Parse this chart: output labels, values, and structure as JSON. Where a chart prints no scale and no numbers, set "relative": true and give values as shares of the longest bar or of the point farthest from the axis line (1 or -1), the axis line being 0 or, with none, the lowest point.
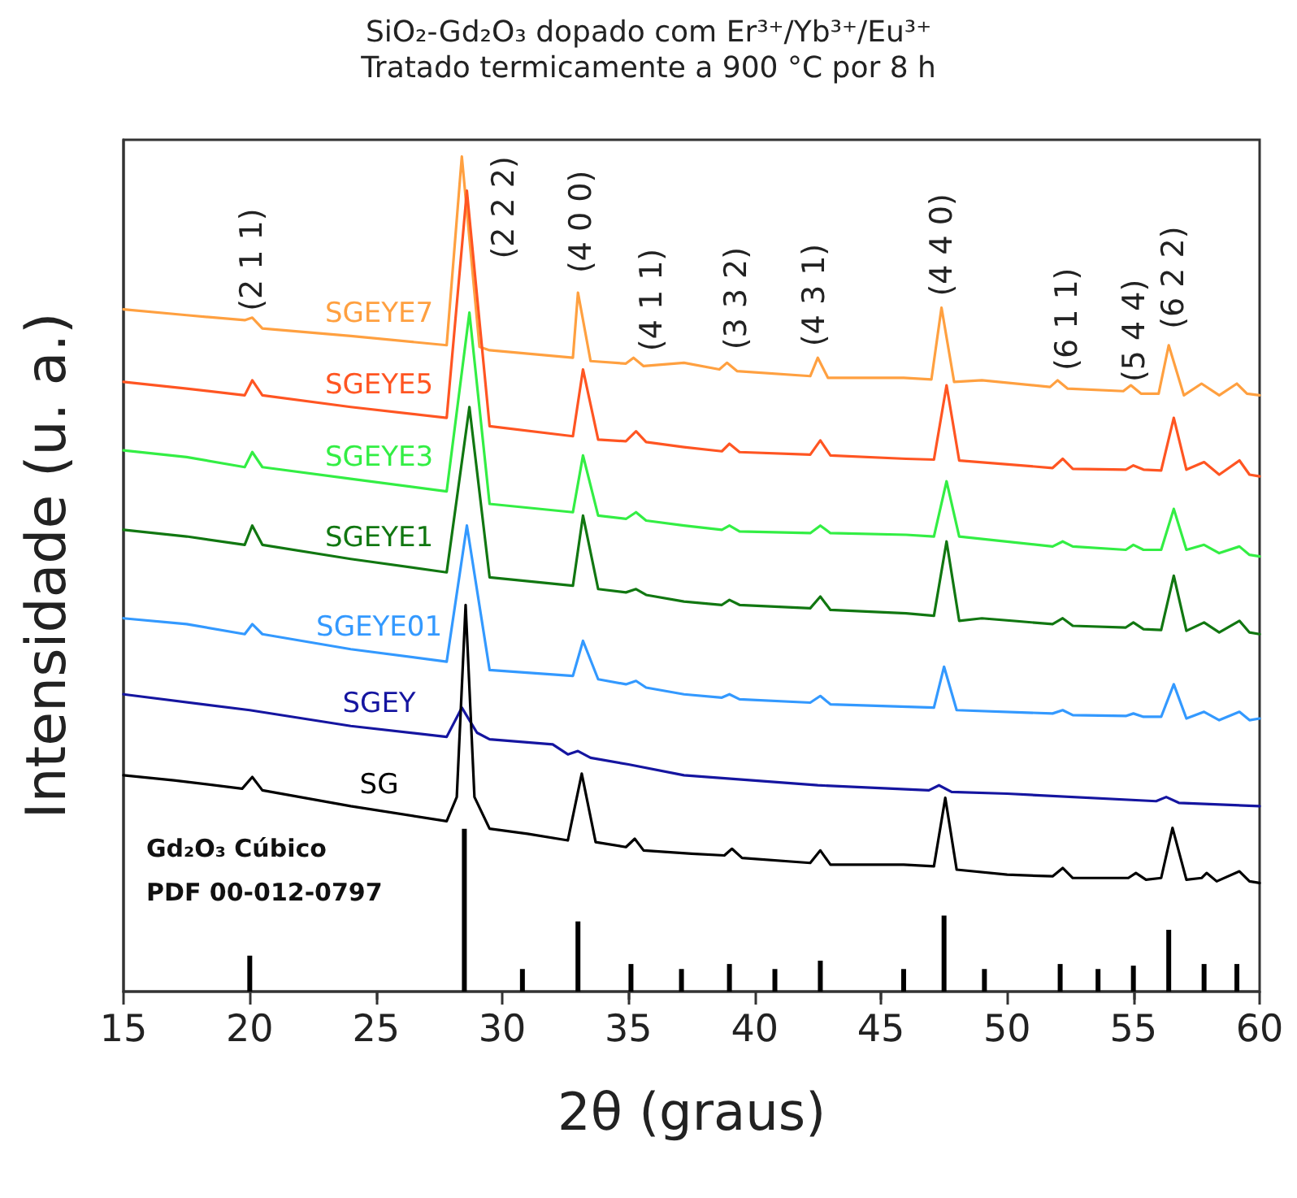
{
  "chart_data": {
    "type": "line",
    "relative": true,
    "title": "SiO₂-Gd₂O₃ dopado com Er³⁺/Yb³⁺/Eu³⁺",
    "subtitle": "Tratado termicamente a 900 °C por 8 h",
    "xlabel": "2θ (graus)",
    "ylabel": "Intensidade (u. a.)",
    "xlim": [
      15,
      60
    ],
    "xticks": [
      15,
      20,
      25,
      30,
      35,
      40,
      45,
      50,
      55,
      60
    ],
    "grid": false,
    "legend": false,
    "marker": "none",
    "line_style": "solid",
    "series": [
      {
        "name": "SGEYE7",
        "color": "#ffa040",
        "x": [
          15,
          17.5,
          19.8,
          20.1,
          20.5,
          24,
          27.8,
          28.4,
          29.1,
          29.5,
          32.8,
          33.0,
          33.5,
          34.9,
          35.2,
          35.6,
          37.2,
          38.6,
          38.9,
          39.3,
          42.2,
          42.5,
          42.9,
          45.9,
          47.0,
          47.4,
          47.9,
          49.0,
          51.7,
          52.0,
          52.4,
          54.6,
          54.9,
          55.3,
          56.0,
          56.4,
          57.0,
          57.7,
          58.4,
          59.1,
          59.5,
          60
        ],
        "values": [
          0.817,
          0.81,
          0.804,
          0.807,
          0.794,
          0.785,
          0.774,
          1,
          0.772,
          0.768,
          0.759,
          0.837,
          0.755,
          0.752,
          0.759,
          0.749,
          0.753,
          0.745,
          0.753,
          0.743,
          0.737,
          0.759,
          0.735,
          0.735,
          0.733,
          0.819,
          0.73,
          0.732,
          0.724,
          0.732,
          0.722,
          0.719,
          0.726,
          0.716,
          0.716,
          0.774,
          0.714,
          0.728,
          0.714,
          0.728,
          0.716,
          0.714
        ]
      },
      {
        "name": "SGEYE5",
        "color": "#ff5522",
        "x": [
          15,
          17.5,
          19.8,
          20.1,
          20.5,
          24,
          27.8,
          28.6,
          29.5,
          32.8,
          33.2,
          33.8,
          34.9,
          35.3,
          35.7,
          37.2,
          38.7,
          39.0,
          39.4,
          42.2,
          42.6,
          43.0,
          46.0,
          47.1,
          47.6,
          48.1,
          51.8,
          52.2,
          52.6,
          54.7,
          55.0,
          55.4,
          56.1,
          56.6,
          57.1,
          57.8,
          58.4,
          59.2,
          59.6,
          60
        ],
        "values": [
          0.73,
          0.722,
          0.714,
          0.732,
          0.714,
          0.7,
          0.687,
          0.959,
          0.677,
          0.665,
          0.745,
          0.661,
          0.659,
          0.671,
          0.658,
          0.652,
          0.647,
          0.656,
          0.646,
          0.643,
          0.66,
          0.642,
          0.638,
          0.637,
          0.726,
          0.636,
          0.627,
          0.638,
          0.626,
          0.625,
          0.63,
          0.625,
          0.624,
          0.687,
          0.625,
          0.634,
          0.619,
          0.636,
          0.619,
          0.617
        ]
      },
      {
        "name": "SGEYE3",
        "color": "#33ee44",
        "x": [
          15,
          17.5,
          19.8,
          20.1,
          20.5,
          24,
          27.8,
          28.7,
          29.5,
          32.8,
          33.2,
          33.8,
          34.9,
          35.3,
          35.7,
          37.2,
          38.7,
          39.0,
          39.4,
          42.2,
          42.6,
          43.0,
          46.0,
          47.1,
          47.6,
          48.1,
          51.8,
          52.2,
          52.6,
          54.7,
          55.0,
          55.4,
          56.1,
          56.6,
          57.1,
          57.8,
          58.4,
          59.2,
          59.6,
          60
        ],
        "values": [
          0.648,
          0.64,
          0.628,
          0.646,
          0.628,
          0.614,
          0.599,
          0.813,
          0.584,
          0.574,
          0.642,
          0.57,
          0.566,
          0.574,
          0.564,
          0.558,
          0.553,
          0.558,
          0.551,
          0.549,
          0.558,
          0.549,
          0.547,
          0.545,
          0.611,
          0.545,
          0.533,
          0.539,
          0.533,
          0.529,
          0.535,
          0.529,
          0.529,
          0.578,
          0.529,
          0.535,
          0.525,
          0.533,
          0.523,
          0.521
        ]
      },
      {
        "name": "SGEYE1",
        "color": "#117711",
        "x": [
          15,
          17.5,
          19.8,
          20.1,
          20.5,
          24,
          27.8,
          28.7,
          29.5,
          32.8,
          33.2,
          33.8,
          34.9,
          35.3,
          35.7,
          37.2,
          38.7,
          39.0,
          39.4,
          42.2,
          42.6,
          43.0,
          46.0,
          47.1,
          47.6,
          48.1,
          49.0,
          51.8,
          52.2,
          52.6,
          54.7,
          55.0,
          55.4,
          56.1,
          56.6,
          57.1,
          57.8,
          58.4,
          59.2,
          59.6,
          60
        ],
        "values": [
          0.553,
          0.545,
          0.535,
          0.558,
          0.535,
          0.518,
          0.502,
          0.7,
          0.496,
          0.486,
          0.57,
          0.482,
          0.478,
          0.482,
          0.475,
          0.467,
          0.463,
          0.469,
          0.463,
          0.459,
          0.473,
          0.457,
          0.453,
          0.45,
          0.539,
          0.444,
          0.447,
          0.44,
          0.447,
          0.438,
          0.436,
          0.442,
          0.434,
          0.433,
          0.498,
          0.432,
          0.442,
          0.43,
          0.444,
          0.43,
          0.428
        ]
      },
      {
        "name": "SGEYE01",
        "color": "#3399ff",
        "x": [
          15,
          17.5,
          19.8,
          20.1,
          20.5,
          24,
          27.8,
          28.6,
          29.5,
          32.8,
          33.2,
          33.8,
          34.9,
          35.3,
          35.7,
          37.2,
          38.7,
          39.0,
          39.4,
          42.2,
          42.6,
          43.0,
          47.1,
          47.5,
          48.0,
          51.8,
          52.2,
          52.6,
          54.7,
          55.0,
          55.4,
          56.1,
          56.6,
          57.1,
          57.8,
          58.4,
          59.2,
          59.6,
          60
        ],
        "values": [
          0.447,
          0.44,
          0.428,
          0.44,
          0.428,
          0.41,
          0.395,
          0.558,
          0.385,
          0.378,
          0.42,
          0.374,
          0.368,
          0.372,
          0.364,
          0.356,
          0.352,
          0.356,
          0.35,
          0.346,
          0.354,
          0.344,
          0.34,
          0.389,
          0.337,
          0.333,
          0.337,
          0.331,
          0.33,
          0.333,
          0.329,
          0.329,
          0.368,
          0.327,
          0.335,
          0.325,
          0.335,
          0.325,
          0.327
        ]
      },
      {
        "name": "SGEY",
        "color": "#1515a0",
        "x": [
          15,
          20,
          24,
          27.8,
          28.4,
          29.0,
          29.5,
          32.0,
          32.6,
          33.0,
          33.5,
          35.0,
          37.2,
          42.5,
          46.9,
          47.3,
          47.8,
          50,
          55.9,
          56.3,
          56.8,
          60
        ],
        "values": [
          0.356,
          0.337,
          0.318,
          0.305,
          0.34,
          0.31,
          0.302,
          0.296,
          0.284,
          0.288,
          0.28,
          0.272,
          0.259,
          0.247,
          0.241,
          0.247,
          0.239,
          0.237,
          0.228,
          0.233,
          0.226,
          0.222
        ]
      },
      {
        "name": "SG",
        "color": "#000000",
        "x": [
          15,
          17,
          19.7,
          20.1,
          20.5,
          24,
          27.8,
          28.2,
          28.55,
          28.9,
          29.5,
          31,
          32.6,
          33.15,
          33.7,
          34.9,
          35.25,
          35.6,
          37.5,
          38.8,
          39.1,
          39.5,
          42.2,
          42.6,
          43,
          45.9,
          47.1,
          47.55,
          48.0,
          50,
          51.8,
          52.2,
          52.6,
          54.8,
          55.1,
          55.5,
          56.1,
          56.55,
          57.1,
          57.7,
          57.9,
          58.3,
          59.2,
          59.6,
          60
        ],
        "values": [
          0.259,
          0.253,
          0.243,
          0.257,
          0.241,
          0.222,
          0.204,
          0.233,
          0.463,
          0.233,
          0.195,
          0.189,
          0.181,
          0.261,
          0.179,
          0.173,
          0.183,
          0.169,
          0.165,
          0.163,
          0.171,
          0.16,
          0.154,
          0.169,
          0.152,
          0.152,
          0.15,
          0.232,
          0.146,
          0.14,
          0.138,
          0.148,
          0.136,
          0.136,
          0.142,
          0.134,
          0.136,
          0.196,
          0.134,
          0.136,
          0.142,
          0.132,
          0.144,
          0.132,
          0.13
        ]
      },
      {
        "type": "bar",
        "color": "#000000",
        "x": [
          20.0,
          28.5,
          30.8,
          33.0,
          35.1,
          37.1,
          39.0,
          40.8,
          42.6,
          45.9,
          47.5,
          49.1,
          52.1,
          53.6,
          55.0,
          56.4,
          57.8,
          59.1
        ],
        "values": [
          0.043,
          0.195,
          0.027,
          0.084,
          0.033,
          0.027,
          0.033,
          0.027,
          0.037,
          0.027,
          0.091,
          0.027,
          0.033,
          0.027,
          0.031,
          0.074,
          0.033,
          0.033
        ]
      }
    ],
    "annotations": [
      {
        "text": "(2 1 1)",
        "x": 20.1,
        "y": 0.807
      },
      {
        "text": "(2 2 2)",
        "x": 28.4,
        "y": 1
      },
      {
        "text": "(4 0 0)",
        "x": 33.0,
        "y": 0.837
      },
      {
        "text": "(4 1 1)",
        "x": 35.2,
        "y": 0.759
      },
      {
        "text": "(3 3 2)",
        "x": 38.9,
        "y": 0.753
      },
      {
        "text": "(4 3 1)",
        "x": 42.5,
        "y": 0.759
      },
      {
        "text": "(4 4 0)",
        "x": 47.4,
        "y": 0.819
      },
      {
        "text": "(6 1 1)",
        "x": 52.0,
        "y": 0.732
      },
      {
        "text": "(5 4 4)",
        "x": 54.9,
        "y": 0.726
      },
      {
        "text": "(6 2 2)",
        "x": 56.4,
        "y": 0.774
      },
      "Gd₂O₃ Cúbico",
      "PDF 00-012-0797"
    ]
  }
}
